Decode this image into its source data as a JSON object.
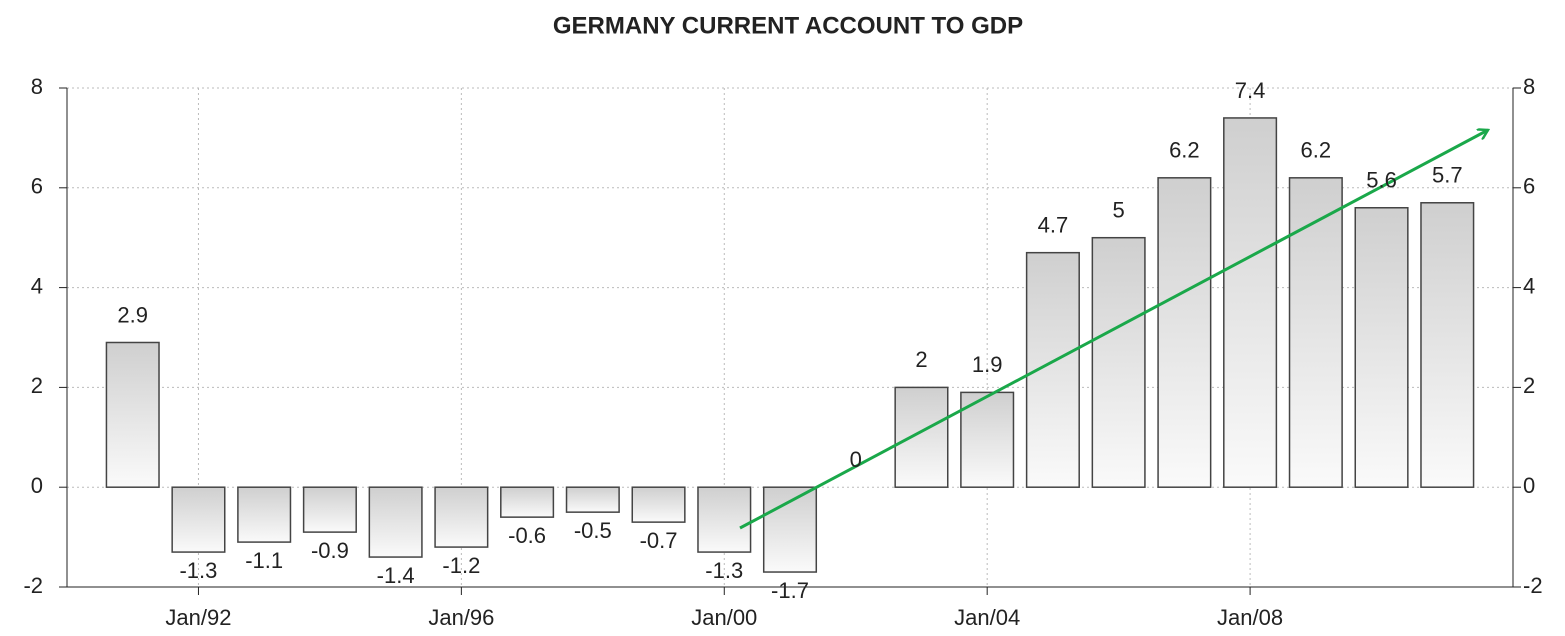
{
  "chart_data": {
    "type": "bar",
    "title": "GERMANY CURRENT ACCOUNT TO GDP",
    "categories": [
      null,
      "Jan/92",
      null,
      null,
      null,
      "Jan/96",
      null,
      null,
      null,
      "Jan/00",
      null,
      null,
      null,
      "Jan/04",
      null,
      null,
      null,
      "Jan/08",
      null,
      null,
      null
    ],
    "values": [
      2.9,
      -1.3,
      -1.1,
      -0.9,
      -1.4,
      -1.2,
      -0.6,
      -0.5,
      -0.7,
      -1.3,
      -1.7,
      0,
      2,
      1.9,
      4.7,
      5,
      6.2,
      7.4,
      6.2,
      5.6,
      5.7
    ],
    "color": "#d4d4d4",
    "ylim": [
      -2,
      8
    ],
    "yticks": [
      -2,
      0,
      2,
      4,
      6,
      8
    ],
    "y2lim": [
      -2,
      8
    ],
    "y2ticks": [
      -2,
      0,
      2,
      4,
      6,
      8
    ],
    "grid": true
  }
}
